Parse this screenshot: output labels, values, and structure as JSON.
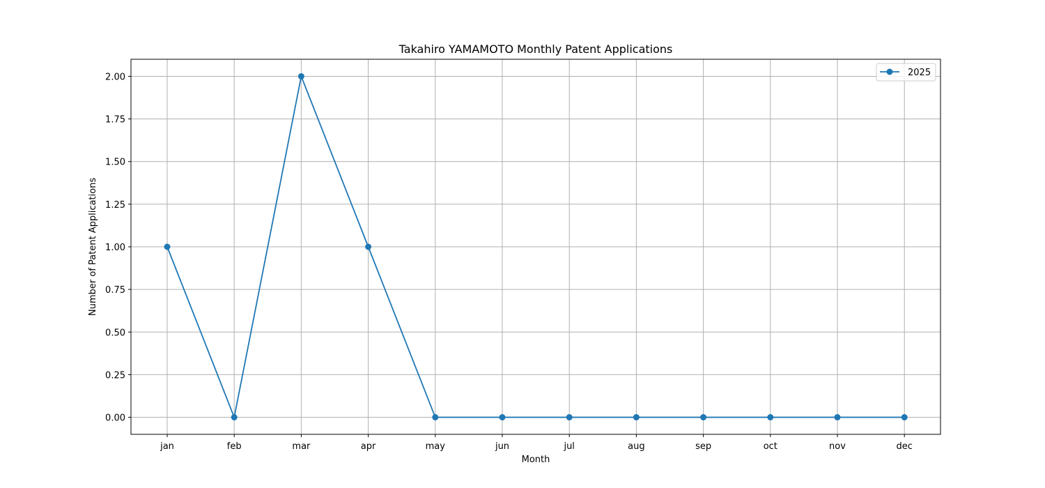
{
  "chart_data": {
    "type": "line",
    "title": "Takahiro YAMAMOTO Monthly Patent Applications",
    "xlabel": "Month",
    "ylabel": "Number of Patent Applications",
    "categories": [
      "jan",
      "feb",
      "mar",
      "apr",
      "may",
      "jun",
      "jul",
      "aug",
      "sep",
      "oct",
      "nov",
      "dec"
    ],
    "series": [
      {
        "name": "2025",
        "values": [
          1,
          0,
          2,
          1,
          0,
          0,
          0,
          0,
          0,
          0,
          0,
          0
        ]
      }
    ],
    "ylim": [
      -0.1,
      2.1
    ],
    "yticks": [
      0.0,
      0.25,
      0.5,
      0.75,
      1.0,
      1.25,
      1.5,
      1.75,
      2.0
    ],
    "ytick_labels": [
      "0.00",
      "0.25",
      "0.50",
      "0.75",
      "1.00",
      "1.25",
      "1.50",
      "1.75",
      "2.00"
    ],
    "grid": true,
    "legend_position": "top-right",
    "colors": {
      "series": "#1f77b4",
      "grid": "#b0b0b0"
    }
  }
}
